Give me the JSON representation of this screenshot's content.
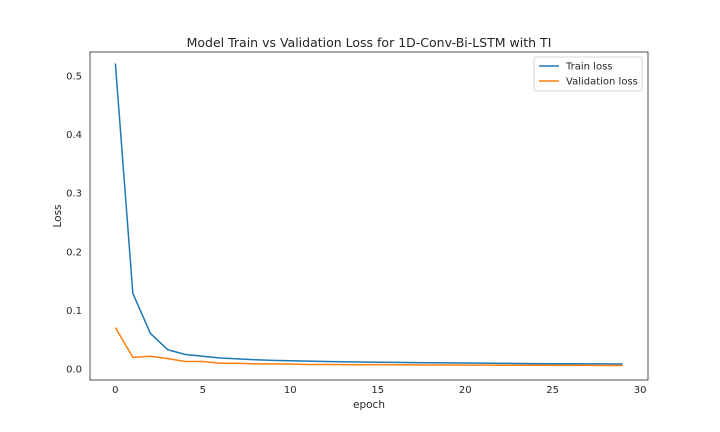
{
  "chart_data": {
    "type": "line",
    "title": "Model Train vs Validation Loss for 1D-Conv-Bi-LSTM with TI",
    "xlabel": "epoch",
    "ylabel": "Loss",
    "xlim": [
      -1.45,
      30.45
    ],
    "ylim": [
      -0.0185,
      0.5405
    ],
    "xticks": [
      0,
      5,
      10,
      15,
      20,
      25,
      30
    ],
    "yticks": [
      0.0,
      0.1,
      0.2,
      0.3,
      0.4,
      0.5
    ],
    "ytick_labels": [
      "0.0",
      "0.1",
      "0.2",
      "0.3",
      "0.4",
      "0.5"
    ],
    "grid": false,
    "legend": "top-right",
    "x": [
      0,
      1,
      2,
      3,
      4,
      5,
      6,
      7,
      8,
      9,
      10,
      11,
      12,
      13,
      14,
      15,
      16,
      17,
      18,
      19,
      20,
      21,
      22,
      23,
      24,
      25,
      26,
      27,
      28,
      29
    ],
    "series": [
      {
        "name": "Train loss",
        "color": "#1f77b4",
        "values": [
          0.521,
          0.129,
          0.061,
          0.033,
          0.025,
          0.022,
          0.019,
          0.0175,
          0.016,
          0.015,
          0.0142,
          0.0136,
          0.013,
          0.0126,
          0.0122,
          0.0118,
          0.0115,
          0.0112,
          0.0109,
          0.0106,
          0.0104,
          0.0102,
          0.0099,
          0.0097,
          0.0095,
          0.0093,
          0.0092,
          0.009,
          0.0089,
          0.0087
        ]
      },
      {
        "name": "Validation loss",
        "color": "#ff7f0e",
        "values": [
          0.071,
          0.02,
          0.022,
          0.018,
          0.013,
          0.013,
          0.01,
          0.01,
          0.009,
          0.009,
          0.0085,
          0.008,
          0.008,
          0.0078,
          0.0076,
          0.0078,
          0.0074,
          0.0072,
          0.0071,
          0.007,
          0.0069,
          0.0068,
          0.0067,
          0.0066,
          0.0066,
          0.0065,
          0.0064,
          0.0064,
          0.0063,
          0.0063
        ]
      }
    ]
  }
}
